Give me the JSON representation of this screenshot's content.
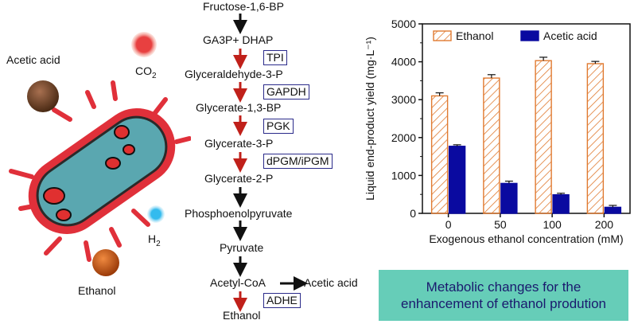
{
  "cell": {
    "labels": {
      "acetic_acid": "Acetic acid",
      "co2_prefix": "CO",
      "co2_sub": "2",
      "h2_prefix": "H",
      "h2_sub": "2",
      "ethanol": "Ethanol"
    },
    "colors": {
      "membrane": "#e0303a",
      "cytoplasm": "#5aa7b0",
      "granule": "#e03030",
      "co2": "#e84040",
      "h2": "#33bbee",
      "acetic": "#7a4a2a",
      "ethanol": "#d8601a"
    }
  },
  "pathway": {
    "metabolites": [
      "Fructose-1,6-BP",
      "GA3P+ DHAP",
      "Glyceraldehyde-3-P",
      "Glycerate-1,3-BP",
      "Glycerate-3-P",
      "Glycerate-2-P",
      "Phosphoenolpyruvate",
      "Pyruvate",
      "Acetyl-CoA",
      "Ethanol"
    ],
    "branch_product": "Acetic acid",
    "enzymes": [
      "TPI",
      "GAPDH",
      "PGK",
      "dPGM/iPGM",
      "ADHE"
    ],
    "colors": {
      "black_arrow": "#111111",
      "red_arrow": "#c0201a",
      "enzyme_box": "#2a2a8a"
    }
  },
  "chart_data": {
    "type": "bar",
    "categories": [
      "0",
      "50",
      "100",
      "200"
    ],
    "series": [
      {
        "name": "Ethanol",
        "values": [
          3100,
          3570,
          4030,
          3950
        ],
        "errors": [
          80,
          90,
          90,
          60
        ],
        "color": "#e07a30",
        "pattern": "hatched"
      },
      {
        "name": "Acetic acid",
        "values": [
          1770,
          790,
          490,
          160
        ],
        "errors": [
          40,
          60,
          40,
          50
        ],
        "color": "#0a0aa0",
        "pattern": "solid"
      }
    ],
    "xlabel": "Exogenous ethanol concentration (mM)",
    "ylabel": "Liquid end-product yield (mg·L⁻¹)",
    "ylim": [
      0,
      5000
    ],
    "yticks": [
      "0",
      "1000",
      "2000",
      "3000",
      "4000",
      "5000"
    ],
    "legend_position": "top"
  },
  "banner": {
    "line1": "Metabolic changes for the",
    "line2": "enhancement of ethanol prodution",
    "color": "#66cdb8"
  }
}
